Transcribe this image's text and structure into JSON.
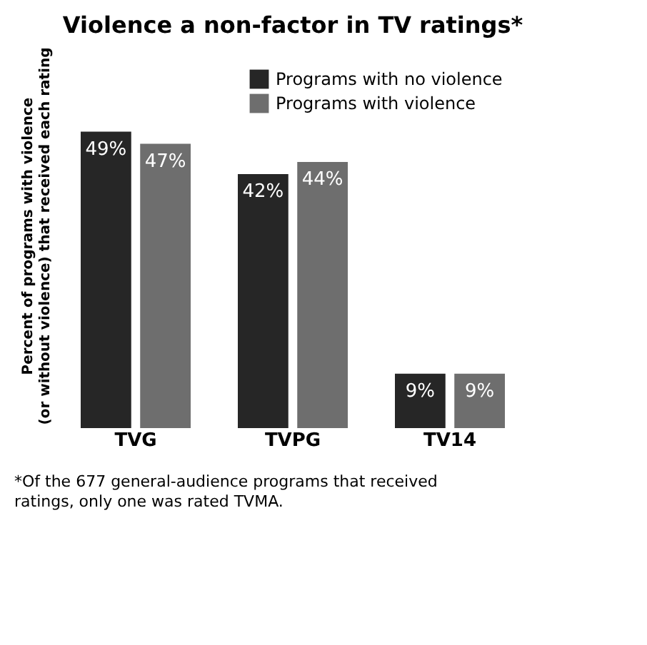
{
  "chart_data": {
    "type": "bar",
    "title": "Violence a non-factor in TV ratings*",
    "ylabel": "Percent of programs with violence\n(or without violence) that received each rating",
    "categories": [
      "TVG",
      "TVPG",
      "TV14"
    ],
    "series": [
      {
        "name": "Programs with no violence",
        "color": "#262626",
        "values": [
          49,
          42,
          9
        ],
        "value_labels": [
          "49%",
          "42%",
          "9%"
        ]
      },
      {
        "name": "Programs with violence",
        "color": "#6e6e6e",
        "values": [
          47,
          44,
          9
        ],
        "value_labels": [
          "47%",
          "44%",
          "9%"
        ]
      }
    ],
    "legend": "top right",
    "grid": false,
    "annotations": [
      "*Of the 677 general-audience programs that received\nratings, only one was rated TVMA."
    ]
  }
}
